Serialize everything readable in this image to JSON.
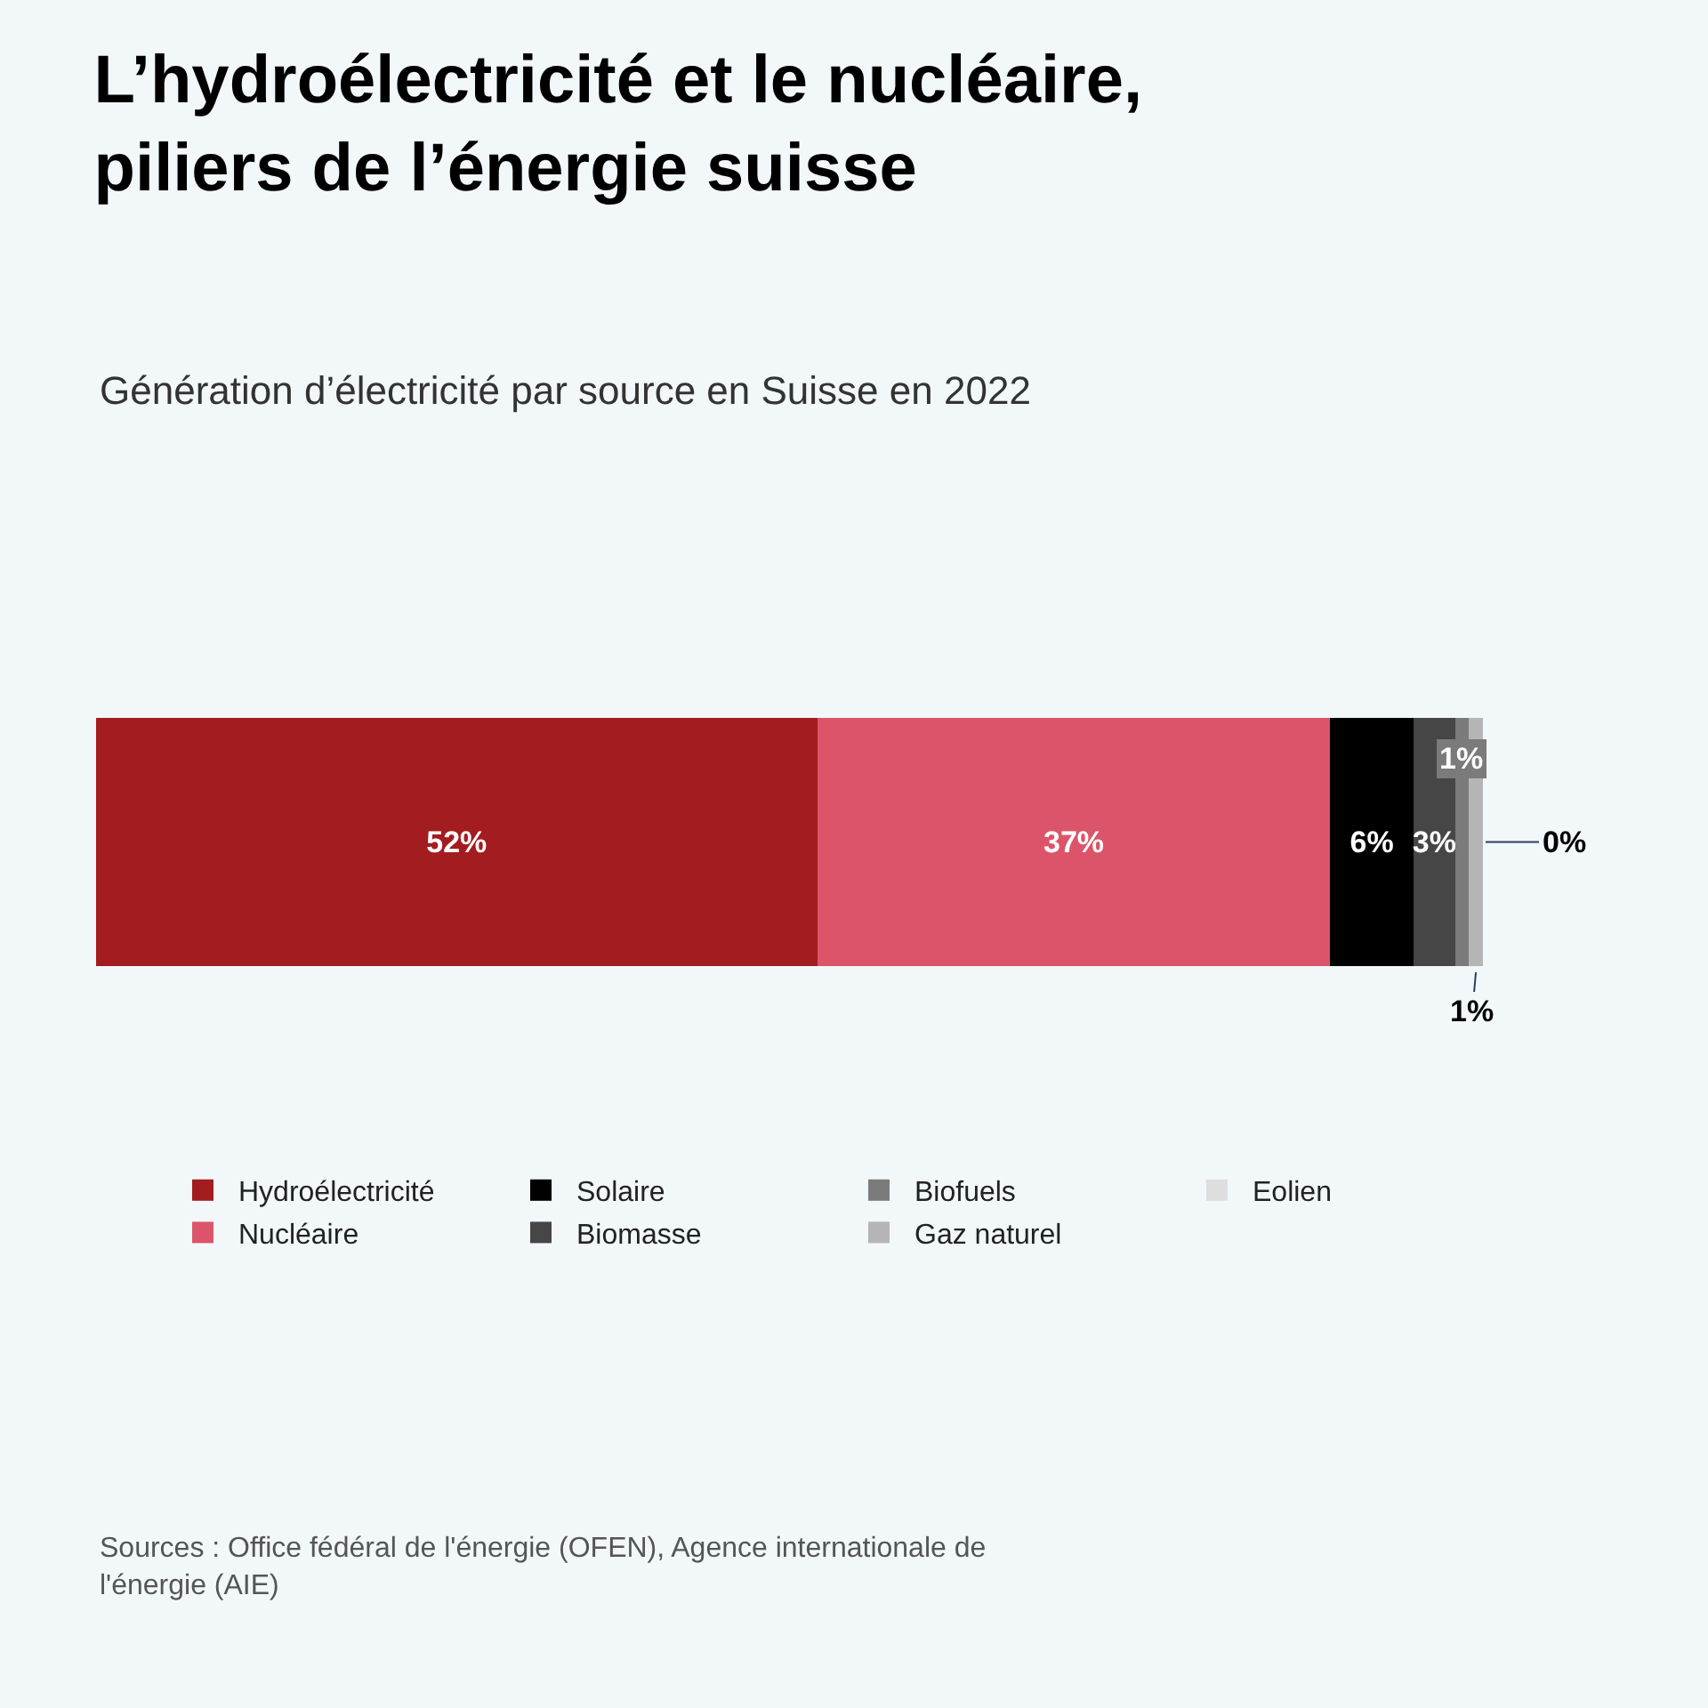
{
  "chart_data": {
    "type": "bar",
    "orientation": "horizontal",
    "stacked": true,
    "title": "L’hydroélectricité et le nucléaire,\npiliers de l’énergie suisse",
    "subtitle": "Génération d’électricité par source en Suisse en 2022",
    "categories": [
      null
    ],
    "legend": "bottom",
    "series": [
      {
        "name": "Hydroélectricité",
        "color": "#a31c20",
        "values": [
          52
        ],
        "value_labels": [
          "52%"
        ]
      },
      {
        "name": "Nucléaire",
        "color": "#dc546a",
        "values": [
          37
        ],
        "value_labels": [
          "37%"
        ]
      },
      {
        "name": "Solaire",
        "color": "#000000",
        "values": [
          6
        ],
        "value_labels": [
          "6%"
        ]
      },
      {
        "name": "Biomasse",
        "color": "#464646",
        "values": [
          3
        ],
        "value_labels": [
          "3%"
        ]
      },
      {
        "name": "Biofuels",
        "color": "#7b7b7b",
        "values": [
          1
        ],
        "value_labels": [
          "1%"
        ]
      },
      {
        "name": "Gaz naturel",
        "color": "#b5b5b5",
        "values": [
          1
        ],
        "value_labels": [
          "1%"
        ]
      },
      {
        "name": "Eolien",
        "color": "#dedede",
        "values": [
          0
        ],
        "value_labels": [
          "0%"
        ]
      }
    ],
    "annotations": [
      "Sources : Office fédéral de l'énergie (OFEN), Agence internationale de\nl'énergie (AIE)"
    ]
  }
}
